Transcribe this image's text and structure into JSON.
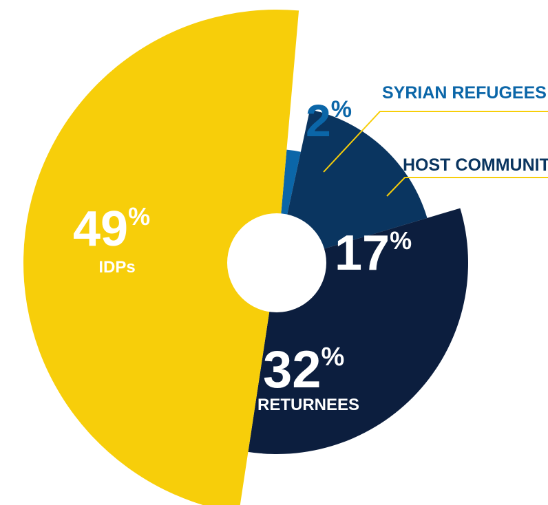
{
  "chart_data": {
    "type": "pie",
    "title": "",
    "slices": [
      {
        "label": "SYRIAN REFUGEES",
        "value": 2,
        "pct_text": "2",
        "color": "#0B66A8"
      },
      {
        "label": "HOST COMMUNITY",
        "value": 17,
        "pct_text": "17",
        "color": "#0A3560"
      },
      {
        "label": "RETURNEES",
        "value": 32,
        "pct_text": "32",
        "color": "#0C1E3E"
      },
      {
        "label": "IDPs",
        "value": 49,
        "pct_text": "49",
        "color": "#F7CE0A"
      }
    ],
    "percent_symbol": "%",
    "callout_color": "#F7CE0A",
    "label_color": "#0B66A8",
    "host_label_color": "#0A3560",
    "inner_text_color": "#ffffff"
  }
}
